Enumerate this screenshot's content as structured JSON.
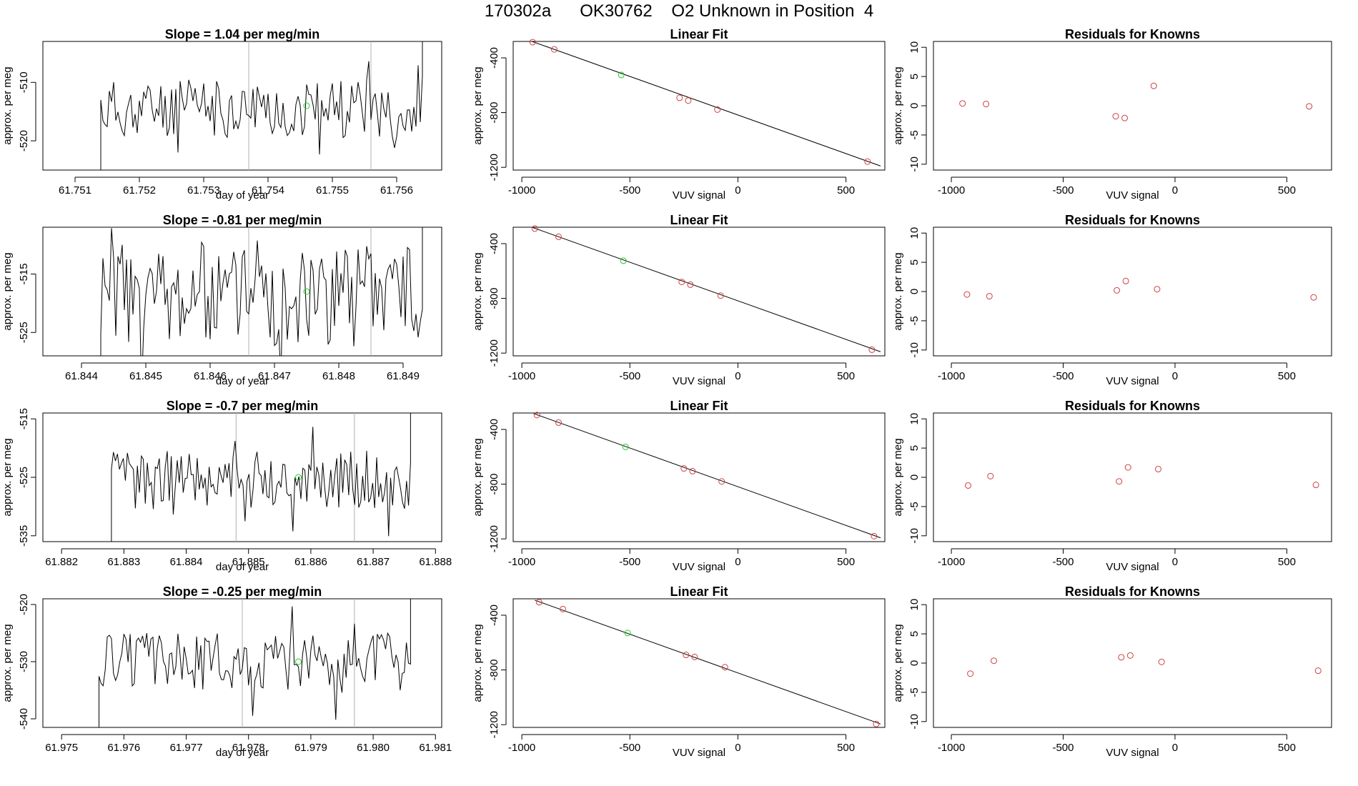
{
  "page": {
    "title": "170302a      OK30762    O2 Unknown in Position  4"
  },
  "colors": {
    "line": "#000000",
    "known_marker": "#d04040",
    "unknown_marker": "#22cc22",
    "event_line": "#b0b0b0"
  },
  "chart_data": [
    {
      "type": "line",
      "title": "Slope =  1.04  per meg/min",
      "xlabel": "day of year",
      "ylabel": "approx. per meg",
      "xlim": [
        61.7505,
        61.7567
      ],
      "ylim": [
        -525,
        -503
      ],
      "xticks": [
        "61.751",
        "61.752",
        "61.753",
        "61.754",
        "61.755",
        "61.756"
      ],
      "yticks": [
        "-510",
        "-520"
      ],
      "start": 61.7514,
      "end": 61.7564,
      "base": -514.5,
      "amp": 5.0,
      "seed": 11,
      "vlines": [
        61.7537,
        61.7556
      ],
      "unknown_point": [
        61.7546,
        -514
      ]
    },
    {
      "type": "scatter",
      "title": "Linear Fit",
      "xlabel": "VUV signal",
      "ylabel": "approx. per meg",
      "xlim": [
        -1040,
        680
      ],
      "ylim": [
        -1220,
        -280
      ],
      "xticks": [
        "-1000",
        "-500",
        "0",
        "500"
      ],
      "yticks": [
        "-400",
        "-800",
        "-1200"
      ],
      "known_points": [
        [
          -950,
          -285
        ],
        [
          -850,
          -338
        ],
        [
          -270,
          -692
        ],
        [
          -230,
          -712
        ],
        [
          -95,
          -778
        ],
        [
          600,
          -1158
        ]
      ],
      "unknown_point": [
        -540,
        -525
      ],
      "fit_line": [
        [
          -960,
          -276
        ],
        [
          660,
          -1190
        ]
      ]
    },
    {
      "type": "scatter",
      "title": "Residuals for Knowns",
      "xlabel": "VUV signal",
      "ylabel": "approx. per meg",
      "xlim": [
        -1080,
        700
      ],
      "ylim": [
        -11,
        11
      ],
      "xticks": [
        "-1000",
        "-500",
        "0",
        "500"
      ],
      "yticks": [
        "10",
        "5",
        "0",
        "-5",
        "-10"
      ],
      "known_points": [
        [
          -950,
          0.4
        ],
        [
          -845,
          0.3
        ],
        [
          -265,
          -1.8
        ],
        [
          -225,
          -2.1
        ],
        [
          -95,
          3.4
        ],
        [
          600,
          -0.1
        ]
      ]
    },
    {
      "type": "line",
      "title": "Slope =  -0.81  per meg/min",
      "xlabel": "day of year",
      "ylabel": "approx. per meg",
      "xlim": [
        61.8434,
        61.8496
      ],
      "ylim": [
        -529,
        -507
      ],
      "xticks": [
        "61.844",
        "61.845",
        "61.846",
        "61.847",
        "61.848",
        "61.849"
      ],
      "yticks": [
        "-515",
        "-525"
      ],
      "start": 61.8443,
      "end": 61.8493,
      "base": -518.5,
      "amp": 9.0,
      "seed": 23,
      "vlines": [
        61.8466,
        61.8485
      ],
      "unknown_point": [
        61.8475,
        -518
      ]
    },
    {
      "type": "scatter",
      "title": "Linear Fit",
      "xlabel": "VUV signal",
      "ylabel": "approx. per meg",
      "xlim": [
        -1040,
        680
      ],
      "ylim": [
        -1220,
        -280
      ],
      "xticks": [
        "-1000",
        "-500",
        "0",
        "500"
      ],
      "yticks": [
        "-400",
        "-800",
        "-1200"
      ],
      "known_points": [
        [
          -940,
          -290
        ],
        [
          -830,
          -350
        ],
        [
          -260,
          -680
        ],
        [
          -220,
          -700
        ],
        [
          -80,
          -780
        ],
        [
          620,
          -1175
        ]
      ],
      "unknown_point": [
        -530,
        -525
      ],
      "fit_line": [
        [
          -950,
          -282
        ],
        [
          660,
          -1190
        ]
      ]
    },
    {
      "type": "scatter",
      "title": "Residuals for Knowns",
      "xlabel": "VUV signal",
      "ylabel": "approx. per meg",
      "xlim": [
        -1080,
        700
      ],
      "ylim": [
        -11,
        11
      ],
      "xticks": [
        "-1000",
        "-500",
        "0",
        "500"
      ],
      "yticks": [
        "10",
        "5",
        "0",
        "-5",
        "-10"
      ],
      "known_points": [
        [
          -930,
          -0.5
        ],
        [
          -830,
          -0.8
        ],
        [
          -260,
          0.2
        ],
        [
          -220,
          1.8
        ],
        [
          -80,
          0.4
        ],
        [
          620,
          -1.0
        ]
      ]
    },
    {
      "type": "line",
      "title": "Slope =  -0.7  per meg/min",
      "xlabel": "day of year",
      "ylabel": "approx. per meg",
      "xlim": [
        61.8817,
        61.8881
      ],
      "ylim": [
        -536,
        -514
      ],
      "xticks": [
        "61.882",
        "61.883",
        "61.884",
        "61.885",
        "61.886",
        "61.887",
        "61.888"
      ],
      "yticks": [
        "-515",
        "-525",
        "-535"
      ],
      "start": 61.8828,
      "end": 61.8876,
      "base": -525.5,
      "amp": 5.0,
      "seed": 37,
      "vlines": [
        61.8848,
        61.8867
      ],
      "unknown_point": [
        61.8858,
        -525
      ]
    },
    {
      "type": "scatter",
      "title": "Linear Fit",
      "xlabel": "VUV signal",
      "ylabel": "approx. per meg",
      "xlim": [
        -1040,
        680
      ],
      "ylim": [
        -1220,
        -280
      ],
      "xticks": [
        "-1000",
        "-500",
        "0",
        "500"
      ],
      "yticks": [
        "-400",
        "-800",
        "-1200"
      ],
      "known_points": [
        [
          -930,
          -295
        ],
        [
          -830,
          -350
        ],
        [
          -250,
          -685
        ],
        [
          -210,
          -705
        ],
        [
          -75,
          -780
        ],
        [
          630,
          -1180
        ]
      ],
      "unknown_point": [
        -520,
        -528
      ],
      "fit_line": [
        [
          -945,
          -284
        ],
        [
          660,
          -1192
        ]
      ]
    },
    {
      "type": "scatter",
      "title": "Residuals for Knowns",
      "xlabel": "VUV signal",
      "ylabel": "approx. per meg",
      "xlim": [
        -1080,
        700
      ],
      "ylim": [
        -11,
        11
      ],
      "xticks": [
        "-1000",
        "-500",
        "0",
        "500"
      ],
      "yticks": [
        "10",
        "5",
        "0",
        "-5",
        "-10"
      ],
      "known_points": [
        [
          -925,
          -1.4
        ],
        [
          -825,
          0.2
        ],
        [
          -250,
          -0.7
        ],
        [
          -210,
          1.7
        ],
        [
          -75,
          1.4
        ],
        [
          630,
          -1.3
        ]
      ]
    },
    {
      "type": "line",
      "title": "Slope =  -0.25  per meg/min",
      "xlabel": "day of year",
      "ylabel": "approx. per meg",
      "xlim": [
        61.9747,
        61.9811
      ],
      "ylim": [
        -541.5,
        -519
      ],
      "xticks": [
        "61.975",
        "61.976",
        "61.977",
        "61.978",
        "61.979",
        "61.980",
        "61.981"
      ],
      "yticks": [
        "-520",
        "-530",
        "-540"
      ],
      "start": 61.9756,
      "end": 61.9806,
      "base": -530,
      "amp": 5.0,
      "seed": 51,
      "vlines": [
        61.9779,
        61.9797
      ],
      "unknown_point": [
        61.9788,
        -530
      ]
    },
    {
      "type": "scatter",
      "title": "Linear Fit",
      "xlabel": "VUV signal",
      "ylabel": "approx. per meg",
      "xlim": [
        -1040,
        680
      ],
      "ylim": [
        -1220,
        -280
      ],
      "xticks": [
        "-1000",
        "-500",
        "0",
        "500"
      ],
      "yticks": [
        "-400",
        "-800",
        "-1200"
      ],
      "known_points": [
        [
          -920,
          -305
        ],
        [
          -810,
          -355
        ],
        [
          -240,
          -690
        ],
        [
          -200,
          -705
        ],
        [
          -60,
          -780
        ],
        [
          640,
          -1195
        ]
      ],
      "unknown_point": [
        -510,
        -530
      ],
      "fit_line": [
        [
          -940,
          -290
        ],
        [
          660,
          -1195
        ]
      ]
    },
    {
      "type": "scatter",
      "title": "Residuals for Knowns",
      "xlabel": "VUV signal",
      "ylabel": "approx. per meg",
      "xlim": [
        -1080,
        700
      ],
      "ylim": [
        -11,
        11
      ],
      "xticks": [
        "-1000",
        "-500",
        "0",
        "500"
      ],
      "yticks": [
        "10",
        "5",
        "0",
        "-5",
        "-10"
      ],
      "known_points": [
        [
          -915,
          -1.8
        ],
        [
          -810,
          0.4
        ],
        [
          -240,
          1.0
        ],
        [
          -200,
          1.3
        ],
        [
          -60,
          0.2
        ],
        [
          640,
          -1.3
        ]
      ]
    }
  ]
}
